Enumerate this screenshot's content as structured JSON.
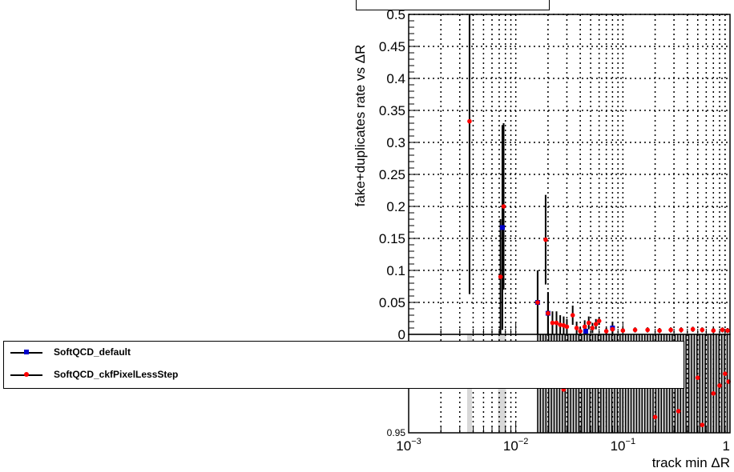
{
  "chart_data": [
    {
      "type": "scatter",
      "panel": "main",
      "title": "",
      "xlabel": "track min ΔR",
      "ylabel": "fake+duplicates rate vs ΔR",
      "xscale": "log",
      "xlim": [
        0.001,
        1
      ],
      "ylim": [
        0,
        0.5
      ],
      "grid": true,
      "y_ticks": [
        "0.05",
        "0.1",
        "0.15",
        "0.2",
        "0.25",
        "0.3",
        "0.35",
        "0.4",
        "0.45",
        "0.5"
      ],
      "series": [
        {
          "name": "SoftQCD_default",
          "color": "#0000cc",
          "marker": "square",
          "points": [
            {
              "x": 0.0075,
              "y": 0.167,
              "err": 0.16
            },
            {
              "x": 0.016,
              "y": 0.05,
              "err": 0.05
            },
            {
              "x": 0.02,
              "y": 0.033,
              "err": 0.033
            },
            {
              "x": 0.045,
              "y": 0.005,
              "err": 0.01
            },
            {
              "x": 0.08,
              "y": 0.01,
              "err": 0.01
            }
          ]
        },
        {
          "name": "SoftQCD_ckfPixelLessStep",
          "color": "#ff0000",
          "marker": "circle",
          "points": [
            {
              "x": 0.0037,
              "y": 0.333,
              "err": 0.27
            },
            {
              "x": 0.0072,
              "y": 0.09,
              "err": 0.09
            },
            {
              "x": 0.0077,
              "y": 0.2,
              "err": 0.13
            },
            {
              "x": 0.016,
              "y": 0.05,
              "err": 0.05
            },
            {
              "x": 0.019,
              "y": 0.148,
              "err": 0.07
            },
            {
              "x": 0.02,
              "y": 0.033,
              "err": 0.033
            },
            {
              "x": 0.022,
              "y": 0.018,
              "err": 0.018
            },
            {
              "x": 0.024,
              "y": 0.018,
              "err": 0.018
            },
            {
              "x": 0.026,
              "y": 0.015,
              "err": 0.015
            },
            {
              "x": 0.028,
              "y": 0.014,
              "err": 0.014
            },
            {
              "x": 0.03,
              "y": 0.012,
              "err": 0.012
            },
            {
              "x": 0.034,
              "y": 0.03,
              "err": 0.015
            },
            {
              "x": 0.037,
              "y": 0.01,
              "err": 0.01
            },
            {
              "x": 0.04,
              "y": 0.005,
              "err": 0.006
            },
            {
              "x": 0.044,
              "y": 0.012,
              "err": 0.01
            },
            {
              "x": 0.048,
              "y": 0.018,
              "err": 0.01
            },
            {
              "x": 0.052,
              "y": 0.01,
              "err": 0.008
            },
            {
              "x": 0.056,
              "y": 0.016,
              "err": 0.008
            },
            {
              "x": 0.06,
              "y": 0.021,
              "err": 0.006
            },
            {
              "x": 0.07,
              "y": 0.005,
              "err": 0.005
            },
            {
              "x": 0.08,
              "y": 0.008,
              "err": 0.005
            },
            {
              "x": 0.1,
              "y": 0.006,
              "err": 0.004
            },
            {
              "x": 0.13,
              "y": 0.007,
              "err": 0.004
            },
            {
              "x": 0.17,
              "y": 0.007,
              "err": 0.004
            },
            {
              "x": 0.22,
              "y": 0.006,
              "err": 0.004
            },
            {
              "x": 0.28,
              "y": 0.007,
              "err": 0.004
            },
            {
              "x": 0.35,
              "y": 0.007,
              "err": 0.004
            },
            {
              "x": 0.45,
              "y": 0.008,
              "err": 0.004
            },
            {
              "x": 0.55,
              "y": 0.007,
              "err": 0.004
            },
            {
              "x": 0.7,
              "y": 0.006,
              "err": 0.004
            },
            {
              "x": 0.85,
              "y": 0.007,
              "err": 0.004
            },
            {
              "x": 0.95,
              "y": 0.006,
              "err": 0.004
            }
          ]
        }
      ]
    },
    {
      "type": "scatter",
      "panel": "ratio",
      "xscale": "log",
      "xlim": [
        0.001,
        1
      ],
      "ylim": [
        0.95,
        1.0
      ],
      "y_ticks": [
        "0.95"
      ],
      "x_ticks": [
        {
          "mantissa": "10",
          "exp": "−3"
        },
        {
          "mantissa": "10",
          "exp": "−2"
        },
        {
          "mantissa": "10",
          "exp": "−1"
        },
        {
          "mantissa": "1",
          "exp": ""
        }
      ],
      "ratio_points": [
        {
          "x": 0.028,
          "y": 0.972
        },
        {
          "x": 0.032,
          "y": 0.975
        },
        {
          "x": 0.045,
          "y": 0.978
        },
        {
          "x": 0.06,
          "y": 0.979
        },
        {
          "x": 0.09,
          "y": 0.976
        },
        {
          "x": 0.2,
          "y": 0.958
        },
        {
          "x": 0.33,
          "y": 0.961
        },
        {
          "x": 0.5,
          "y": 0.978
        },
        {
          "x": 0.55,
          "y": 0.954
        },
        {
          "x": 0.7,
          "y": 0.97
        },
        {
          "x": 0.8,
          "y": 0.974
        },
        {
          "x": 0.9,
          "y": 0.98
        },
        {
          "x": 0.97,
          "y": 0.976
        }
      ]
    }
  ]
}
